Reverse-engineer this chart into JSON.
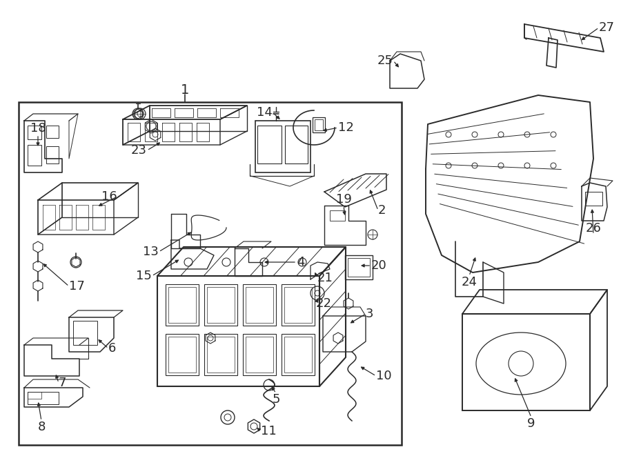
{
  "bg_color": "#ffffff",
  "line_color": "#2a2a2a",
  "fig_width": 9.0,
  "fig_height": 6.61,
  "dpi": 100,
  "label_fontsize": 13
}
